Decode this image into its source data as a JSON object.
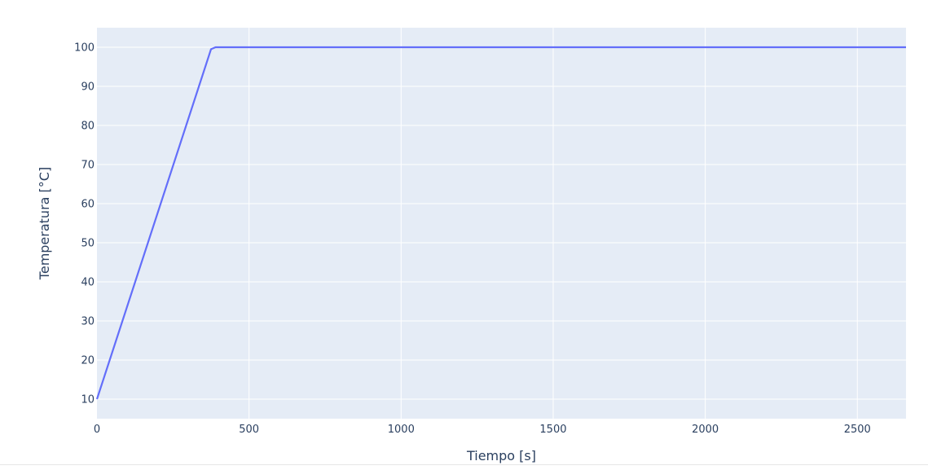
{
  "chart_data": {
    "type": "line",
    "title": "",
    "xlabel": "Tiempo [s]",
    "ylabel": "Temperatura [°C]",
    "xlim": [
      0,
      2660
    ],
    "ylim": [
      5,
      105
    ],
    "x_ticks": [
      0,
      500,
      1000,
      1500,
      2000,
      2500
    ],
    "y_ticks": [
      10,
      20,
      30,
      40,
      50,
      60,
      70,
      80,
      90,
      100
    ],
    "grid": true,
    "legend": "none",
    "colors": {
      "plot_bg": "#e5ecf6",
      "grid": "#ffffff",
      "line": "#636efa",
      "text": "#2a3f5f"
    },
    "series": [
      {
        "x": [
          0,
          375,
          390,
          2660
        ],
        "y": [
          10,
          99.5,
          100,
          100
        ]
      }
    ]
  }
}
